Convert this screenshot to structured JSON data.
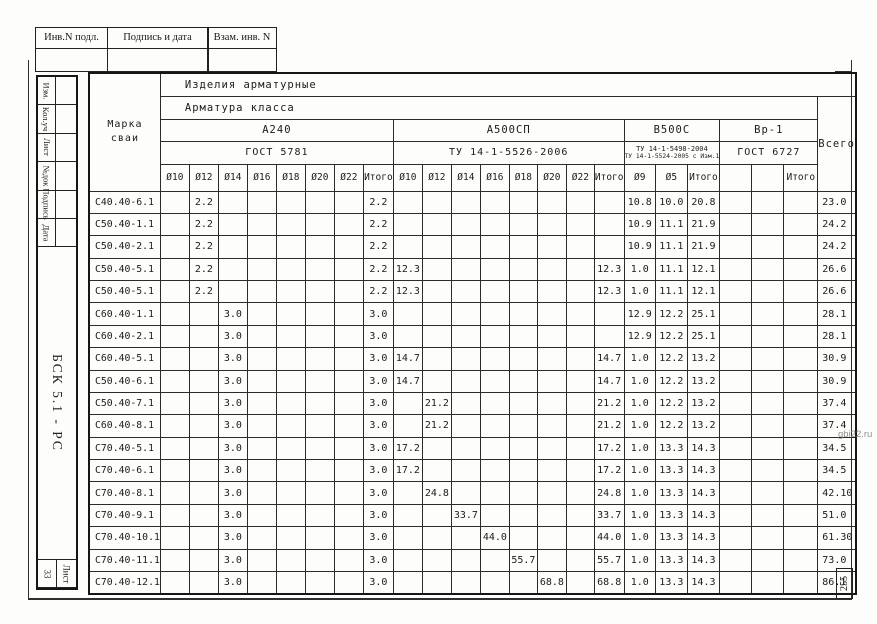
{
  "page": {
    "watermark": "gbi22.ru",
    "page_number": "255"
  },
  "top_stamp": {
    "boxes": [
      "Инв.N подл.",
      "Подпись и дата",
      "Взам. инв. N"
    ]
  },
  "left_strip": {
    "revision_labels": [
      "Изм.",
      "Кол.уч",
      "Лист",
      "№док",
      "Подпись",
      "Дата"
    ],
    "document_code": "БСК 5.1 - РС",
    "sheet_label": "Лист",
    "sheet_number": "33"
  },
  "table": {
    "header": {
      "marka_label": "Марка сваи",
      "products_title": "Изделия арматурные",
      "class_title": "Арматура класса",
      "total_label": "Всего",
      "itogo_label": "Итого",
      "groups": [
        {
          "name": "А240",
          "standard": "ГОСТ 5781",
          "diameters": [
            "Ø10",
            "Ø12",
            "Ø14",
            "Ø16",
            "Ø18",
            "Ø20",
            "Ø22"
          ]
        },
        {
          "name": "А500СП",
          "standard": "ТУ 14-1-5526-2006",
          "diameters": [
            "Ø10",
            "Ø12",
            "Ø14",
            "Ø16",
            "Ø18",
            "Ø20",
            "Ø22"
          ]
        },
        {
          "name": "В500С",
          "standard": "ТУ 14-1-5498-2004",
          "standard2": "ТУ 14-1-5524-2005 с Изм.1",
          "diameters": [
            "Ø9",
            "Ø5"
          ]
        },
        {
          "name": "Вр-1",
          "standard": "ГОСТ 6727",
          "diameters": [
            "",
            ""
          ]
        }
      ]
    },
    "rows": [
      {
        "marka": "С40.40-6.1",
        "a240": [
          "",
          "2.2",
          "",
          "",
          "",
          "",
          ""
        ],
        "a240_itogo": "2.2",
        "a500": [
          "",
          "",
          "",
          "",
          "",
          "",
          ""
        ],
        "a500_itogo": "",
        "b500": [
          "10.8",
          "10.0"
        ],
        "b500_itogo": "20.8",
        "vr1": [
          "",
          ""
        ],
        "vr1_itogo": "",
        "vsego": "23.0"
      },
      {
        "marka": "С50.40-1.1",
        "a240": [
          "",
          "2.2",
          "",
          "",
          "",
          "",
          ""
        ],
        "a240_itogo": "2.2",
        "a500": [
          "",
          "",
          "",
          "",
          "",
          "",
          ""
        ],
        "a500_itogo": "",
        "b500": [
          "10.9",
          "11.1"
        ],
        "b500_itogo": "21.9",
        "vr1": [
          "",
          ""
        ],
        "vr1_itogo": "",
        "vsego": "24.2"
      },
      {
        "marka": "С50.40-2.1",
        "a240": [
          "",
          "2.2",
          "",
          "",
          "",
          "",
          ""
        ],
        "a240_itogo": "2.2",
        "a500": [
          "",
          "",
          "",
          "",
          "",
          "",
          ""
        ],
        "a500_itogo": "",
        "b500": [
          "10.9",
          "11.1"
        ],
        "b500_itogo": "21.9",
        "vr1": [
          "",
          ""
        ],
        "vr1_itogo": "",
        "vsego": "24.2"
      },
      {
        "marka": "С50.40-5.1",
        "a240": [
          "",
          "2.2",
          "",
          "",
          "",
          "",
          ""
        ],
        "a240_itogo": "2.2",
        "a500": [
          "12.3",
          "",
          "",
          "",
          "",
          "",
          ""
        ],
        "a500_itogo": "12.3",
        "b500": [
          "1.0",
          "11.1"
        ],
        "b500_itogo": "12.1",
        "vr1": [
          "",
          ""
        ],
        "vr1_itogo": "",
        "vsego": "26.6"
      },
      {
        "marka": "С50.40-5.1",
        "a240": [
          "",
          "2.2",
          "",
          "",
          "",
          "",
          ""
        ],
        "a240_itogo": "2.2",
        "a500": [
          "12.3",
          "",
          "",
          "",
          "",
          "",
          ""
        ],
        "a500_itogo": "12.3",
        "b500": [
          "1.0",
          "11.1"
        ],
        "b500_itogo": "12.1",
        "vr1": [
          "",
          ""
        ],
        "vr1_itogo": "",
        "vsego": "26.6"
      },
      {
        "marka": "С60.40-1.1",
        "a240": [
          "",
          "",
          "3.0",
          "",
          "",
          "",
          ""
        ],
        "a240_itogo": "3.0",
        "a500": [
          "",
          "",
          "",
          "",
          "",
          "",
          ""
        ],
        "a500_itogo": "",
        "b500": [
          "12.9",
          "12.2"
        ],
        "b500_itogo": "25.1",
        "vr1": [
          "",
          ""
        ],
        "vr1_itogo": "",
        "vsego": "28.1"
      },
      {
        "marka": "С60.40-2.1",
        "a240": [
          "",
          "",
          "3.0",
          "",
          "",
          "",
          ""
        ],
        "a240_itogo": "3.0",
        "a500": [
          "",
          "",
          "",
          "",
          "",
          "",
          ""
        ],
        "a500_itogo": "",
        "b500": [
          "12.9",
          "12.2"
        ],
        "b500_itogo": "25.1",
        "vr1": [
          "",
          ""
        ],
        "vr1_itogo": "",
        "vsego": "28.1"
      },
      {
        "marka": "С60.40-5.1",
        "a240": [
          "",
          "",
          "3.0",
          "",
          "",
          "",
          ""
        ],
        "a240_itogo": "3.0",
        "a500": [
          "14.7",
          "",
          "",
          "",
          "",
          "",
          ""
        ],
        "a500_itogo": "14.7",
        "b500": [
          "1.0",
          "12.2"
        ],
        "b500_itogo": "13.2",
        "vr1": [
          "",
          ""
        ],
        "vr1_itogo": "",
        "vsego": "30.9"
      },
      {
        "marka": "С50.40-6.1",
        "a240": [
          "",
          "",
          "3.0",
          "",
          "",
          "",
          ""
        ],
        "a240_itogo": "3.0",
        "a500": [
          "14.7",
          "",
          "",
          "",
          "",
          "",
          ""
        ],
        "a500_itogo": "14.7",
        "b500": [
          "1.0",
          "12.2"
        ],
        "b500_itogo": "13.2",
        "vr1": [
          "",
          ""
        ],
        "vr1_itogo": "",
        "vsego": "30.9"
      },
      {
        "marka": "С50.40-7.1",
        "a240": [
          "",
          "",
          "3.0",
          "",
          "",
          "",
          ""
        ],
        "a240_itogo": "3.0",
        "a500": [
          "",
          "21.2",
          "",
          "",
          "",
          "",
          ""
        ],
        "a500_itogo": "21.2",
        "b500": [
          "1.0",
          "12.2"
        ],
        "b500_itogo": "13.2",
        "vr1": [
          "",
          ""
        ],
        "vr1_itogo": "",
        "vsego": "37.4"
      },
      {
        "marka": "С60.40-8.1",
        "a240": [
          "",
          "",
          "3.0",
          "",
          "",
          "",
          ""
        ],
        "a240_itogo": "3.0",
        "a500": [
          "",
          "21.2",
          "",
          "",
          "",
          "",
          ""
        ],
        "a500_itogo": "21.2",
        "b500": [
          "1.0",
          "12.2"
        ],
        "b500_itogo": "13.2",
        "vr1": [
          "",
          ""
        ],
        "vr1_itogo": "",
        "vsego": "37.4"
      },
      {
        "marka": "С70.40-5.1",
        "a240": [
          "",
          "",
          "3.0",
          "",
          "",
          "",
          ""
        ],
        "a240_itogo": "3.0",
        "a500": [
          "17.2",
          "",
          "",
          "",
          "",
          "",
          ""
        ],
        "a500_itogo": "17.2",
        "b500": [
          "1.0",
          "13.3"
        ],
        "b500_itogo": "14.3",
        "vr1": [
          "",
          ""
        ],
        "vr1_itogo": "",
        "vsego": "34.5"
      },
      {
        "marka": "С70.40-6.1",
        "a240": [
          "",
          "",
          "3.0",
          "",
          "",
          "",
          ""
        ],
        "a240_itogo": "3.0",
        "a500": [
          "17.2",
          "",
          "",
          "",
          "",
          "",
          ""
        ],
        "a500_itogo": "17.2",
        "b500": [
          "1.0",
          "13.3"
        ],
        "b500_itogo": "14.3",
        "vr1": [
          "",
          ""
        ],
        "vr1_itogo": "",
        "vsego": "34.5"
      },
      {
        "marka": "С70.40-8.1",
        "a240": [
          "",
          "",
          "3.0",
          "",
          "",
          "",
          ""
        ],
        "a240_itogo": "3.0",
        "a500": [
          "",
          "24.8",
          "",
          "",
          "",
          "",
          ""
        ],
        "a500_itogo": "24.8",
        "b500": [
          "1.0",
          "13.3"
        ],
        "b500_itogo": "14.3",
        "vr1": [
          "",
          ""
        ],
        "vr1_itogo": "",
        "vsego": "42.10"
      },
      {
        "marka": "С70.40-9.1",
        "a240": [
          "",
          "",
          "3.0",
          "",
          "",
          "",
          ""
        ],
        "a240_itogo": "3.0",
        "a500": [
          "",
          "",
          "33.7",
          "",
          "",
          "",
          ""
        ],
        "a500_itogo": "33.7",
        "b500": [
          "1.0",
          "13.3"
        ],
        "b500_itogo": "14.3",
        "vr1": [
          "",
          ""
        ],
        "vr1_itogo": "",
        "vsego": "51.0"
      },
      {
        "marka": "С70.40-10.1",
        "a240": [
          "",
          "",
          "3.0",
          "",
          "",
          "",
          ""
        ],
        "a240_itogo": "3.0",
        "a500": [
          "",
          "",
          "",
          "44.0",
          "",
          "",
          ""
        ],
        "a500_itogo": "44.0",
        "b500": [
          "1.0",
          "13.3"
        ],
        "b500_itogo": "14.3",
        "vr1": [
          "",
          ""
        ],
        "vr1_itogo": "",
        "vsego": "61.30"
      },
      {
        "marka": "С70.40-11.1",
        "a240": [
          "",
          "",
          "3.0",
          "",
          "",
          "",
          ""
        ],
        "a240_itogo": "3.0",
        "a500": [
          "",
          "",
          "",
          "",
          "55.7",
          "",
          ""
        ],
        "a500_itogo": "55.7",
        "b500": [
          "1.0",
          "13.3"
        ],
        "b500_itogo": "14.3",
        "vr1": [
          "",
          ""
        ],
        "vr1_itogo": "",
        "vsego": "73.0"
      },
      {
        "marka": "С70.40-12.1",
        "a240": [
          "",
          "",
          "3.0",
          "",
          "",
          "",
          ""
        ],
        "a240_itogo": "3.0",
        "a500": [
          "",
          "",
          "",
          "",
          "",
          "68.8",
          ""
        ],
        "a500_itogo": "68.8",
        "b500": [
          "1.0",
          "13.3"
        ],
        "b500_itogo": "14.3",
        "vr1": [
          "",
          ""
        ],
        "vr1_itogo": "",
        "vsego": "86.1"
      }
    ]
  }
}
